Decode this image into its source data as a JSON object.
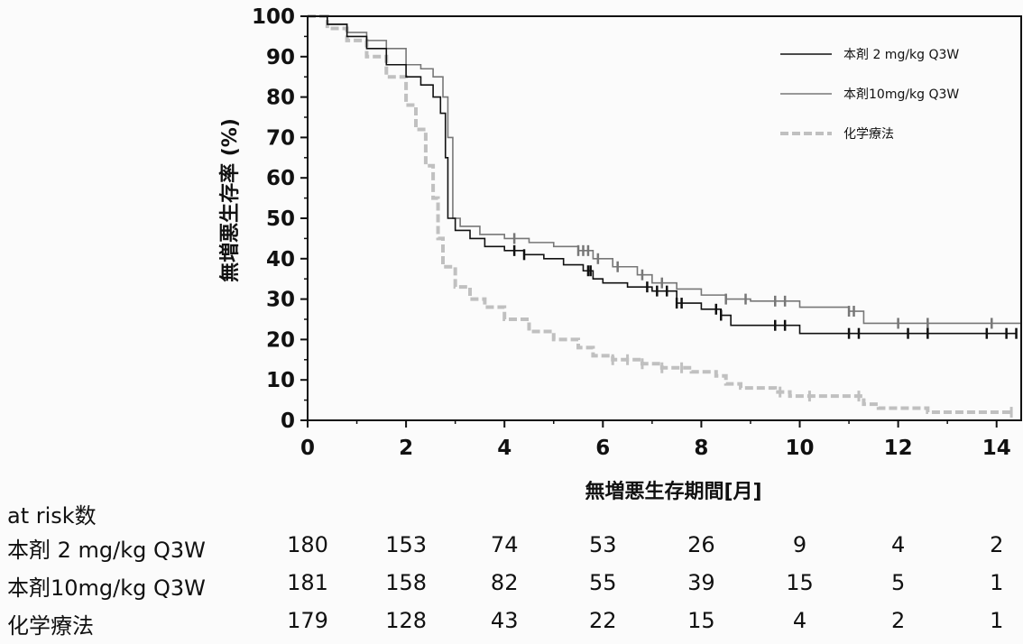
{
  "chart_data": {
    "type": "line",
    "subtype": "kaplan-meier step",
    "xlabel": "無増悪生存期間[月]",
    "ylabel": "無増悪生存率 (%)",
    "xlim": [
      0,
      14.5
    ],
    "ylim": [
      0,
      100
    ],
    "x_ticks": [
      "0",
      "2",
      "4",
      "6",
      "8",
      "10",
      "12",
      "14"
    ],
    "y_ticks": [
      "0",
      "10",
      "20",
      "30",
      "40",
      "50",
      "60",
      "70",
      "80",
      "90",
      "100"
    ],
    "grid": false,
    "legend_position": "top-right",
    "series": [
      {
        "name": "本剤 2 mg/kg Q3W",
        "color": "#111111",
        "style": "solid",
        "points": [
          [
            0,
            100
          ],
          [
            0.4,
            98
          ],
          [
            0.8,
            95
          ],
          [
            1.2,
            92
          ],
          [
            1.6,
            88
          ],
          [
            2.0,
            85
          ],
          [
            2.3,
            83
          ],
          [
            2.55,
            80
          ],
          [
            2.7,
            76
          ],
          [
            2.8,
            65
          ],
          [
            2.85,
            50
          ],
          [
            3.0,
            47
          ],
          [
            3.3,
            45
          ],
          [
            3.6,
            43
          ],
          [
            4.0,
            42
          ],
          [
            4.4,
            41
          ],
          [
            4.8,
            40
          ],
          [
            5.2,
            38.5
          ],
          [
            5.6,
            37
          ],
          [
            5.8,
            35
          ],
          [
            6.0,
            34
          ],
          [
            6.5,
            33
          ],
          [
            7.0,
            32
          ],
          [
            7.5,
            29
          ],
          [
            8.0,
            27.5
          ],
          [
            8.4,
            26
          ],
          [
            8.6,
            23.5
          ],
          [
            9.0,
            23.5
          ],
          [
            9.5,
            23.5
          ],
          [
            10.0,
            21.5
          ],
          [
            12.0,
            21.5
          ],
          [
            14.4,
            21.5
          ]
        ],
        "censor_x": [
          4.2,
          4.4,
          5.7,
          5.75,
          6.9,
          7.1,
          7.3,
          7.5,
          7.6,
          8.3,
          8.4,
          9.5,
          9.7,
          11.0,
          11.2,
          12.2,
          12.6,
          13.8,
          14.2,
          14.4
        ]
      },
      {
        "name": "本剤10mg/kg Q3W",
        "color": "#777777",
        "style": "solid",
        "points": [
          [
            0,
            100
          ],
          [
            0.4,
            98
          ],
          [
            0.8,
            96
          ],
          [
            1.2,
            94
          ],
          [
            1.6,
            92
          ],
          [
            2.0,
            88
          ],
          [
            2.3,
            87
          ],
          [
            2.55,
            85
          ],
          [
            2.75,
            80
          ],
          [
            2.85,
            70
          ],
          [
            2.95,
            50
          ],
          [
            3.1,
            48
          ],
          [
            3.5,
            46
          ],
          [
            4.0,
            45
          ],
          [
            4.5,
            44
          ],
          [
            5.0,
            43
          ],
          [
            5.5,
            42
          ],
          [
            5.8,
            40
          ],
          [
            6.2,
            38
          ],
          [
            6.7,
            36
          ],
          [
            7.0,
            34
          ],
          [
            7.5,
            32.5
          ],
          [
            8.0,
            31
          ],
          [
            8.5,
            30
          ],
          [
            9.0,
            29.5
          ],
          [
            10.0,
            28
          ],
          [
            11.0,
            27
          ],
          [
            11.3,
            24
          ],
          [
            12.0,
            24
          ],
          [
            14.5,
            24
          ]
        ],
        "censor_x": [
          4.2,
          5.5,
          5.6,
          5.7,
          5.9,
          6.3,
          6.8,
          7.2,
          8.5,
          8.9,
          9.5,
          9.7,
          11.0,
          11.1,
          12.0,
          12.6,
          13.9
        ]
      },
      {
        "name": "化学療法",
        "color": "#c0c0c0",
        "style": "dashed",
        "points": [
          [
            0,
            100
          ],
          [
            0.4,
            97
          ],
          [
            0.8,
            94
          ],
          [
            1.2,
            90
          ],
          [
            1.6,
            85
          ],
          [
            2.0,
            78
          ],
          [
            2.2,
            72
          ],
          [
            2.4,
            63
          ],
          [
            2.55,
            55
          ],
          [
            2.65,
            45
          ],
          [
            2.75,
            38
          ],
          [
            3.0,
            33
          ],
          [
            3.3,
            30
          ],
          [
            3.6,
            28
          ],
          [
            4.0,
            25
          ],
          [
            4.5,
            22
          ],
          [
            5.0,
            20
          ],
          [
            5.5,
            18
          ],
          [
            5.8,
            16
          ],
          [
            6.2,
            15
          ],
          [
            6.8,
            14
          ],
          [
            7.2,
            13
          ],
          [
            7.8,
            12
          ],
          [
            8.3,
            11
          ],
          [
            8.5,
            9
          ],
          [
            8.8,
            8
          ],
          [
            9.5,
            7
          ],
          [
            9.8,
            6
          ],
          [
            10.3,
            6
          ],
          [
            11.3,
            4
          ],
          [
            11.6,
            3
          ],
          [
            12.0,
            3
          ],
          [
            12.6,
            2
          ],
          [
            13.0,
            2
          ],
          [
            14.3,
            2
          ]
        ],
        "censor_x": [
          6.2,
          6.5,
          6.8,
          7.2,
          7.6,
          9.6,
          10.2,
          11.2,
          14.3
        ]
      }
    ]
  },
  "risk_table": {
    "title": "at risk数",
    "rows": [
      {
        "label": "本剤 2 mg/kg Q3W",
        "values": [
          "180",
          "153",
          "74",
          "53",
          "26",
          "9",
          "4",
          "2"
        ]
      },
      {
        "label": "本剤10mg/kg Q3W",
        "values": [
          "181",
          "158",
          "82",
          "55",
          "39",
          "15",
          "5",
          "1"
        ]
      },
      {
        "label": "化学療法",
        "values": [
          "179",
          "128",
          "43",
          "22",
          "15",
          "4",
          "2",
          "1"
        ]
      }
    ]
  }
}
